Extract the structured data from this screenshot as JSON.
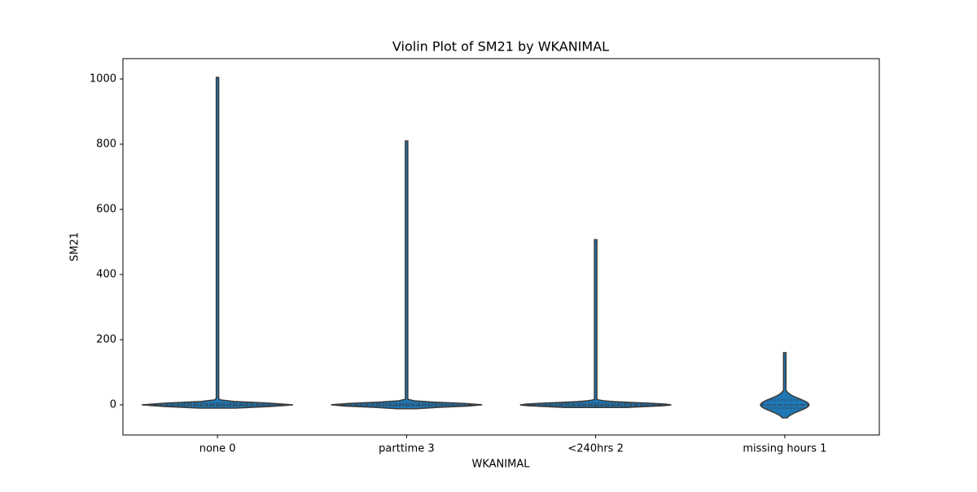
{
  "chart_data": {
    "type": "violin",
    "title": "Violin Plot of SM21 by WKANIMAL",
    "x_label": "WKANIMAL",
    "y_label": "SM21",
    "categories": [
      "none 0",
      "parttime 3",
      "<240hrs 2",
      "missing hours 1"
    ],
    "min": [
      -10,
      -12,
      -8,
      -40
    ],
    "q1": [
      -3,
      -3,
      -3,
      -10
    ],
    "median": [
      0,
      0,
      0,
      0
    ],
    "q3": [
      5,
      5,
      5,
      15
    ],
    "max": [
      1005,
      810,
      507,
      160
    ],
    "color": "#1f77b4",
    "ylim": [
      -92.5,
      1062.5
    ],
    "yticks": [
      0,
      200,
      400,
      600,
      800,
      1000
    ]
  }
}
